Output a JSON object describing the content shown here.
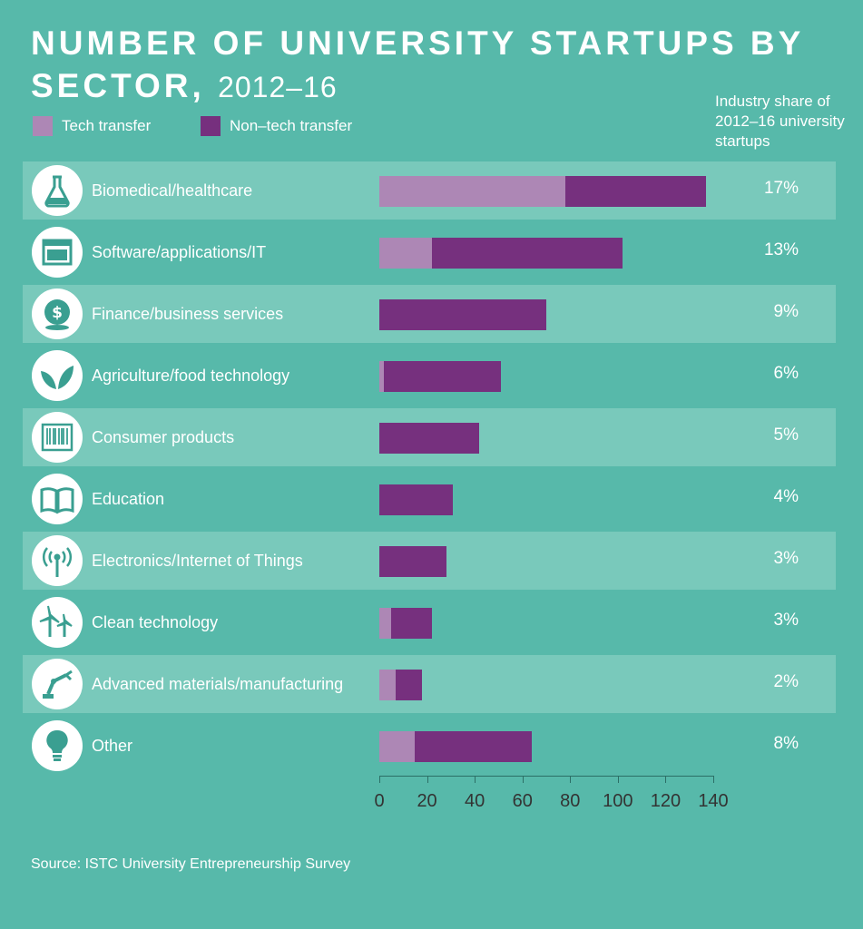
{
  "title": {
    "main": "NUMBER OF UNIVERSITY STARTUPS BY SECTOR,",
    "years": "2012–16"
  },
  "legend": {
    "tech": "Tech transfer",
    "nontech": "Non–tech transfer"
  },
  "share_header": "Industry share of 2012–16 university startups",
  "colors": {
    "tech": "#ad87b5",
    "nontech": "#76307e",
    "background": "#57b9aa",
    "band": "#79c9bb",
    "icon": "#3a9f91"
  },
  "source": "Source: ISTC University Entrepreneurship Survey",
  "chart_data": {
    "type": "bar",
    "orientation": "horizontal",
    "stacked": true,
    "categories": [
      "Biomedical/healthcare",
      "Software/applications/IT",
      "Finance/business services",
      "Agriculture/food technology",
      "Consumer products",
      "Education",
      "Electronics/Internet of Things",
      "Clean technology",
      "Advanced materials/manufacturing",
      "Other"
    ],
    "icons": [
      "flask-icon",
      "browser-window-icon",
      "coin-dollar-icon",
      "leaves-icon",
      "barcode-icon",
      "book-icon",
      "antenna-icon",
      "wind-turbine-icon",
      "robot-arm-icon",
      "lightbulb-icon"
    ],
    "series": [
      {
        "name": "Tech transfer",
        "values": [
          78,
          22,
          0,
          2,
          0,
          0,
          0,
          5,
          7,
          15
        ]
      },
      {
        "name": "Non–tech transfer",
        "values": [
          59,
          80,
          70,
          49,
          42,
          31,
          28,
          17,
          11,
          49
        ]
      }
    ],
    "shares": [
      "17%",
      "13%",
      "9%",
      "6%",
      "5%",
      "4%",
      "3%",
      "3%",
      "2%",
      "8%"
    ],
    "xlim": [
      0,
      140
    ],
    "xticks": [
      "0",
      "20",
      "40",
      "60",
      "80",
      "100",
      "120",
      "140"
    ]
  }
}
